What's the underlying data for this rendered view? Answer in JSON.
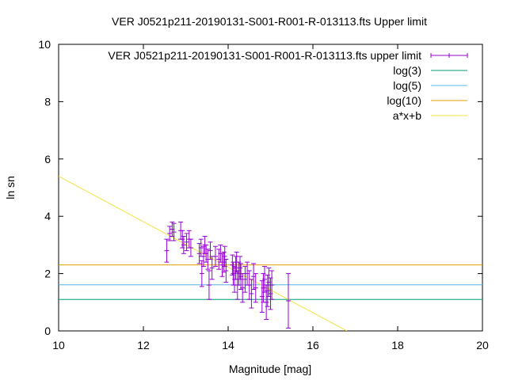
{
  "chart_data": {
    "type": "scatter",
    "title": "VER J0521p211-20190131-S001-R001-R-013113.fts Upper limit",
    "xlabel": "Magnitude [mag]",
    "ylabel": "ln sn",
    "xlim": [
      10,
      20
    ],
    "ylim": [
      0,
      10
    ],
    "xticks": [
      "10",
      "12",
      "14",
      "16",
      "18",
      "20"
    ],
    "yticks": [
      "0",
      "2",
      "4",
      "6",
      "8",
      "10"
    ],
    "grid": false,
    "legend_position": "top-right",
    "series": [
      {
        "name": "VER J0521p211-20190131-S001-R001-R-013113.fts upper limit",
        "kind": "errorbars",
        "color": "#9400d3",
        "points": [
          {
            "x": 12.55,
            "y": 2.8,
            "err": 0.4
          },
          {
            "x": 12.62,
            "y": 3.4,
            "err": 0.25
          },
          {
            "x": 12.68,
            "y": 3.55,
            "err": 0.25
          },
          {
            "x": 12.72,
            "y": 3.45,
            "err": 0.3
          },
          {
            "x": 12.88,
            "y": 3.5,
            "err": 0.3
          },
          {
            "x": 12.92,
            "y": 3.2,
            "err": 0.3
          },
          {
            "x": 12.95,
            "y": 3.0,
            "err": 0.3
          },
          {
            "x": 13.02,
            "y": 3.1,
            "err": 0.3
          },
          {
            "x": 13.08,
            "y": 3.2,
            "err": 0.3
          },
          {
            "x": 13.12,
            "y": 2.9,
            "err": 0.3
          },
          {
            "x": 13.32,
            "y": 2.7,
            "err": 0.35
          },
          {
            "x": 13.36,
            "y": 2.9,
            "err": 0.3
          },
          {
            "x": 13.38,
            "y": 2.0,
            "err": 0.45
          },
          {
            "x": 13.42,
            "y": 2.6,
            "err": 0.35
          },
          {
            "x": 13.45,
            "y": 3.0,
            "err": 0.3
          },
          {
            "x": 13.48,
            "y": 2.7,
            "err": 0.3
          },
          {
            "x": 13.52,
            "y": 2.5,
            "err": 0.35
          },
          {
            "x": 13.55,
            "y": 1.6,
            "err": 0.5
          },
          {
            "x": 13.58,
            "y": 2.8,
            "err": 0.3
          },
          {
            "x": 13.62,
            "y": 2.2,
            "err": 0.4
          },
          {
            "x": 13.7,
            "y": 2.6,
            "err": 0.35
          },
          {
            "x": 13.78,
            "y": 2.5,
            "err": 0.35
          },
          {
            "x": 13.82,
            "y": 2.7,
            "err": 0.3
          },
          {
            "x": 13.86,
            "y": 2.3,
            "err": 0.4
          },
          {
            "x": 13.9,
            "y": 2.4,
            "err": 0.35
          },
          {
            "x": 13.92,
            "y": 2.6,
            "err": 0.35
          },
          {
            "x": 13.95,
            "y": 2.1,
            "err": 0.4
          },
          {
            "x": 14.1,
            "y": 2.3,
            "err": 0.35
          },
          {
            "x": 14.12,
            "y": 2.0,
            "err": 0.4
          },
          {
            "x": 14.15,
            "y": 1.8,
            "err": 0.45
          },
          {
            "x": 14.18,
            "y": 2.2,
            "err": 0.4
          },
          {
            "x": 14.2,
            "y": 2.4,
            "err": 0.35
          },
          {
            "x": 14.22,
            "y": 1.6,
            "err": 0.5
          },
          {
            "x": 14.25,
            "y": 2.0,
            "err": 0.4
          },
          {
            "x": 14.28,
            "y": 2.2,
            "err": 0.4
          },
          {
            "x": 14.3,
            "y": 1.9,
            "err": 0.45
          },
          {
            "x": 14.34,
            "y": 1.5,
            "err": 0.5
          },
          {
            "x": 14.4,
            "y": 1.8,
            "err": 0.45
          },
          {
            "x": 14.45,
            "y": 2.0,
            "err": 0.4
          },
          {
            "x": 14.5,
            "y": 1.6,
            "err": 0.5
          },
          {
            "x": 14.55,
            "y": 1.3,
            "err": 0.5
          },
          {
            "x": 14.6,
            "y": 1.9,
            "err": 0.45
          },
          {
            "x": 14.65,
            "y": 1.5,
            "err": 0.5
          },
          {
            "x": 14.8,
            "y": 1.2,
            "err": 0.55
          },
          {
            "x": 14.83,
            "y": 1.5,
            "err": 0.5
          },
          {
            "x": 14.86,
            "y": 1.8,
            "err": 0.45
          },
          {
            "x": 14.9,
            "y": 1.0,
            "err": 0.6
          },
          {
            "x": 14.93,
            "y": 1.4,
            "err": 0.55
          },
          {
            "x": 14.96,
            "y": 1.7,
            "err": 0.5
          },
          {
            "x": 15.0,
            "y": 1.3,
            "err": 0.55
          },
          {
            "x": 15.03,
            "y": 1.6,
            "err": 0.5
          },
          {
            "x": 15.42,
            "y": 1.05,
            "err": 0.95
          }
        ]
      },
      {
        "name": "log(3)",
        "kind": "hline",
        "y": 1.0986,
        "color": "#009e73"
      },
      {
        "name": "log(5)",
        "kind": "hline",
        "y": 1.6094,
        "color": "#56b4e9"
      },
      {
        "name": "log(10)",
        "kind": "hline",
        "y": 2.3026,
        "color": "#e69f00"
      },
      {
        "name": "a*x+b",
        "kind": "line",
        "x": [
          10,
          16.8
        ],
        "y": [
          5.4,
          0
        ],
        "color": "#f0e442"
      }
    ]
  }
}
